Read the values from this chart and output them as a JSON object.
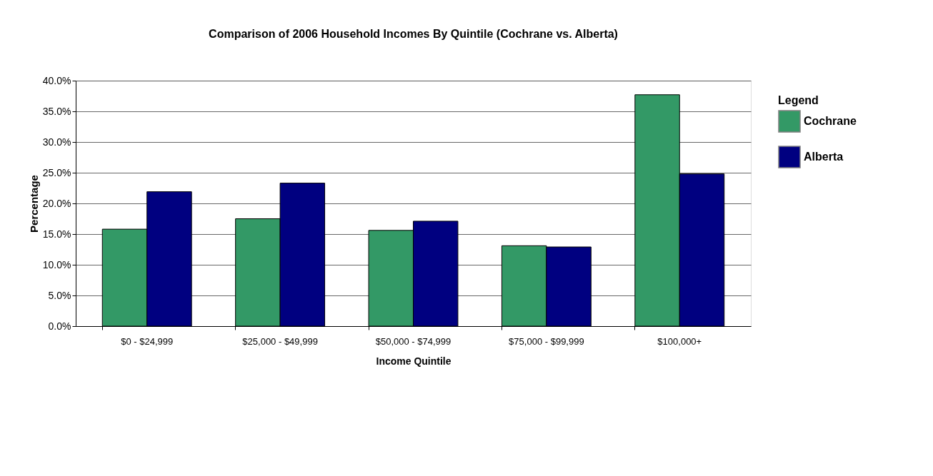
{
  "chart_data": {
    "type": "bar",
    "title": "Comparison of 2006 Household Incomes By Quintile (Cochrane vs. Alberta)",
    "xlabel": "Income Quintile",
    "ylabel": "Percentage",
    "legend_title": "Legend",
    "categories": [
      "$0 - $24,999",
      "$25,000 - $49,999",
      "$50,000 - $74,999",
      "$75,000 - $99,999",
      "$100,000+"
    ],
    "series": [
      {
        "name": "Cochrane",
        "color": "#339966",
        "values": [
          15.8,
          17.5,
          15.6,
          13.1,
          37.7
        ]
      },
      {
        "name": "Alberta",
        "color": "#000080",
        "values": [
          21.9,
          23.3,
          17.1,
          12.9,
          24.8
        ]
      }
    ],
    "ylim": [
      0,
      40
    ],
    "yticks": [
      {
        "value": 0,
        "label": "0.0%"
      },
      {
        "value": 5,
        "label": "5.0%"
      },
      {
        "value": 10,
        "label": "10.0%"
      },
      {
        "value": 15,
        "label": "15.0%"
      },
      {
        "value": 20,
        "label": "20.0%"
      },
      {
        "value": 25,
        "label": "25.0%"
      },
      {
        "value": 30,
        "label": "30.0%"
      },
      {
        "value": 35,
        "label": "35.0%"
      },
      {
        "value": 40,
        "label": "40.0%"
      }
    ],
    "grid": "y",
    "legend": "right"
  }
}
